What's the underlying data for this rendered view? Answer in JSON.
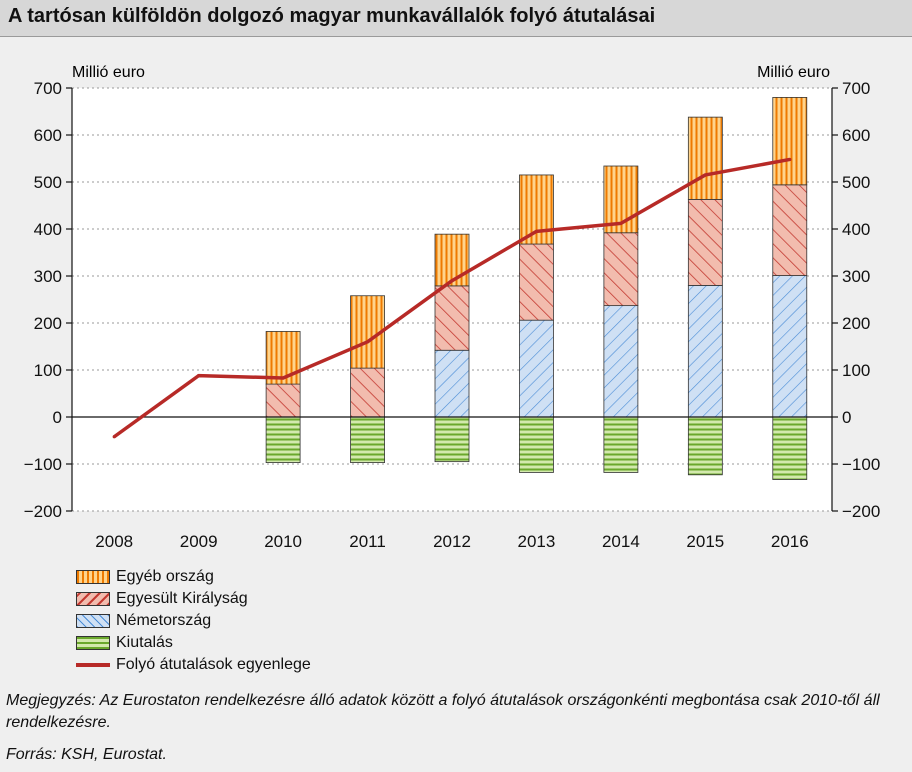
{
  "title": "A tartósan külföldön dolgozó magyar munkavállalók folyó átutalásai",
  "chart_data": {
    "type": "bar",
    "stacked": true,
    "categories": [
      "2008",
      "2009",
      "2010",
      "2011",
      "2012",
      "2013",
      "2014",
      "2015",
      "2016"
    ],
    "ylabel_left": "Millió euro",
    "ylabel_right": "Millió euro",
    "ylim": [
      -200,
      700
    ],
    "yticks": [
      -200,
      -100,
      0,
      100,
      200,
      300,
      400,
      500,
      600,
      700
    ],
    "ytick_labels": [
      "−200",
      "−100",
      "0",
      "100",
      "200",
      "300",
      "400",
      "500",
      "600",
      "700"
    ],
    "grid": true,
    "legend_position": "bottom-left",
    "series": [
      {
        "name": "Németország",
        "kind": "bar",
        "values": [
          null,
          null,
          0,
          0,
          142,
          206,
          237,
          280,
          301
        ],
        "color": "#c9dcf2",
        "stroke": "#4a8cd6"
      },
      {
        "name": "Egyesült Királyság",
        "kind": "bar",
        "values": [
          null,
          null,
          70,
          104,
          137,
          162,
          155,
          183,
          193
        ],
        "color": "#f0b8a8",
        "stroke": "#c43a32"
      },
      {
        "name": "Egyéb ország",
        "kind": "bar",
        "values": [
          null,
          null,
          112,
          154,
          110,
          147,
          142,
          175,
          186
        ],
        "color": "#ffcb7a",
        "stroke": "#ee7a00"
      },
      {
        "name": "Kiutalás",
        "kind": "bar",
        "values": [
          null,
          null,
          -97,
          -97,
          -95,
          -118,
          -118,
          -123,
          -133
        ],
        "color": "#cfe7a6",
        "stroke": "#6aa82c"
      },
      {
        "name": "Folyó átutalások egyenlege",
        "kind": "line",
        "values": [
          -42,
          88,
          83,
          160,
          290,
          395,
          412,
          515,
          548
        ],
        "color": "#b72a27"
      }
    ]
  },
  "legend_order": [
    2,
    1,
    0,
    3,
    4
  ],
  "note": "Megjegyzés: Az Eurostaton rendelkezésre álló adatok között a folyó átutalások országonkénti megbontása csak 2010-től áll rendelkezésre.",
  "source": "Forrás: KSH, Eurostat."
}
